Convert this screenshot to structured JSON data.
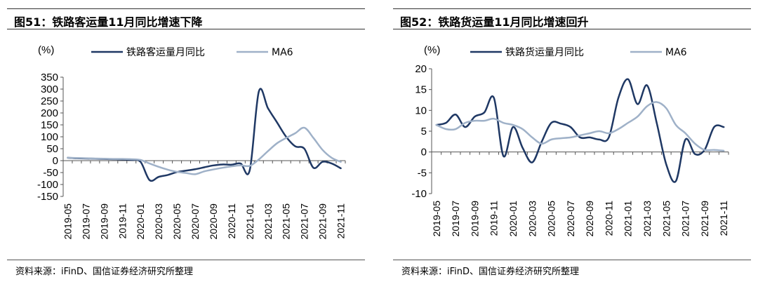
{
  "colors": {
    "series_main": "#1f3864",
    "series_ma": "#9fb1c8",
    "axis": "#555555"
  },
  "x_categories": [
    "2019-05",
    "2019-06",
    "2019-07",
    "2019-08",
    "2019-09",
    "2019-10",
    "2019-11",
    "2019-12",
    "2020-01",
    "2020-02",
    "2020-03",
    "2020-04",
    "2020-05",
    "2020-06",
    "2020-07",
    "2020-08",
    "2020-09",
    "2020-10",
    "2020-11",
    "2020-12",
    "2021-01",
    "2021-02",
    "2021-03",
    "2021-04",
    "2021-05",
    "2021-06",
    "2021-07",
    "2021-08",
    "2021-09",
    "2021-10",
    "2021-11"
  ],
  "x_tick_labels": [
    "2019-05",
    "2019-07",
    "2019-09",
    "2019-11",
    "2020-01",
    "2020-03",
    "2020-05",
    "2020-07",
    "2020-09",
    "2020-11",
    "2021-01",
    "2021-03",
    "2021-05",
    "2021-07",
    "2021-09",
    "2021-11"
  ],
  "chart_data": [
    {
      "type": "line",
      "title": "图51：铁路客运量11月同比增速下降",
      "unit": "(%)",
      "ylim": [
        -150,
        350
      ],
      "yticks": [
        -150,
        -100,
        -50,
        0,
        50,
        100,
        150,
        200,
        250,
        300,
        350
      ],
      "legend_position": "top",
      "grid": false,
      "series": [
        {
          "name": "铁路客运量月同比",
          "values": [
            12,
            10,
            9,
            8,
            7,
            6,
            5,
            3,
            -5,
            -82,
            -68,
            -60,
            -48,
            -42,
            -36,
            -28,
            -20,
            -16,
            -17,
            -12,
            -40,
            290,
            220,
            160,
            100,
            60,
            50,
            -30,
            -5,
            -12,
            -32
          ]
        },
        {
          "name": "MA6",
          "values": [
            12,
            11,
            10,
            9,
            8,
            7,
            7,
            6,
            3,
            -12,
            -26,
            -38,
            -47,
            -52,
            -57,
            -45,
            -37,
            -30,
            -24,
            -20,
            -22,
            5,
            40,
            73,
            95,
            115,
            138,
            95,
            45,
            12,
            -5
          ]
        }
      ],
      "source": "资料来源：iFinD、国信证券经济研究所整理"
    },
    {
      "type": "line",
      "title": "图52：铁路货运量11月同比增速回升",
      "unit": "(%)",
      "ylim": [
        -10,
        20
      ],
      "yticks": [
        -10,
        -5,
        0,
        5,
        10,
        15,
        20
      ],
      "legend_position": "top",
      "grid": false,
      "series": [
        {
          "name": "铁路货运量月同比",
          "values": [
            6.5,
            7.0,
            9.0,
            6.0,
            8.5,
            9.5,
            13.0,
            -1.0,
            6.0,
            1.0,
            -2.5,
            2.5,
            7.0,
            6.8,
            6.0,
            3.5,
            3.5,
            3.0,
            3.5,
            13.0,
            17.5,
            11.5,
            16.0,
            7.0,
            -3.0,
            -7.0,
            3.0,
            -0.5,
            0.5,
            6.0,
            6.0
          ]
        },
        {
          "name": "MA6",
          "values": [
            6.5,
            5.5,
            5.5,
            7.0,
            7.5,
            7.5,
            8.0,
            7.0,
            6.5,
            5.5,
            3.5,
            2.0,
            3.0,
            3.3,
            3.5,
            4.0,
            4.5,
            5.0,
            4.5,
            5.5,
            7.0,
            8.5,
            11.0,
            12.0,
            10.5,
            6.5,
            4.5,
            2.0,
            0.5,
            0.5,
            0.3
          ]
        }
      ],
      "source": "资料来源：iFinD、国信证券经济研究所整理"
    }
  ]
}
